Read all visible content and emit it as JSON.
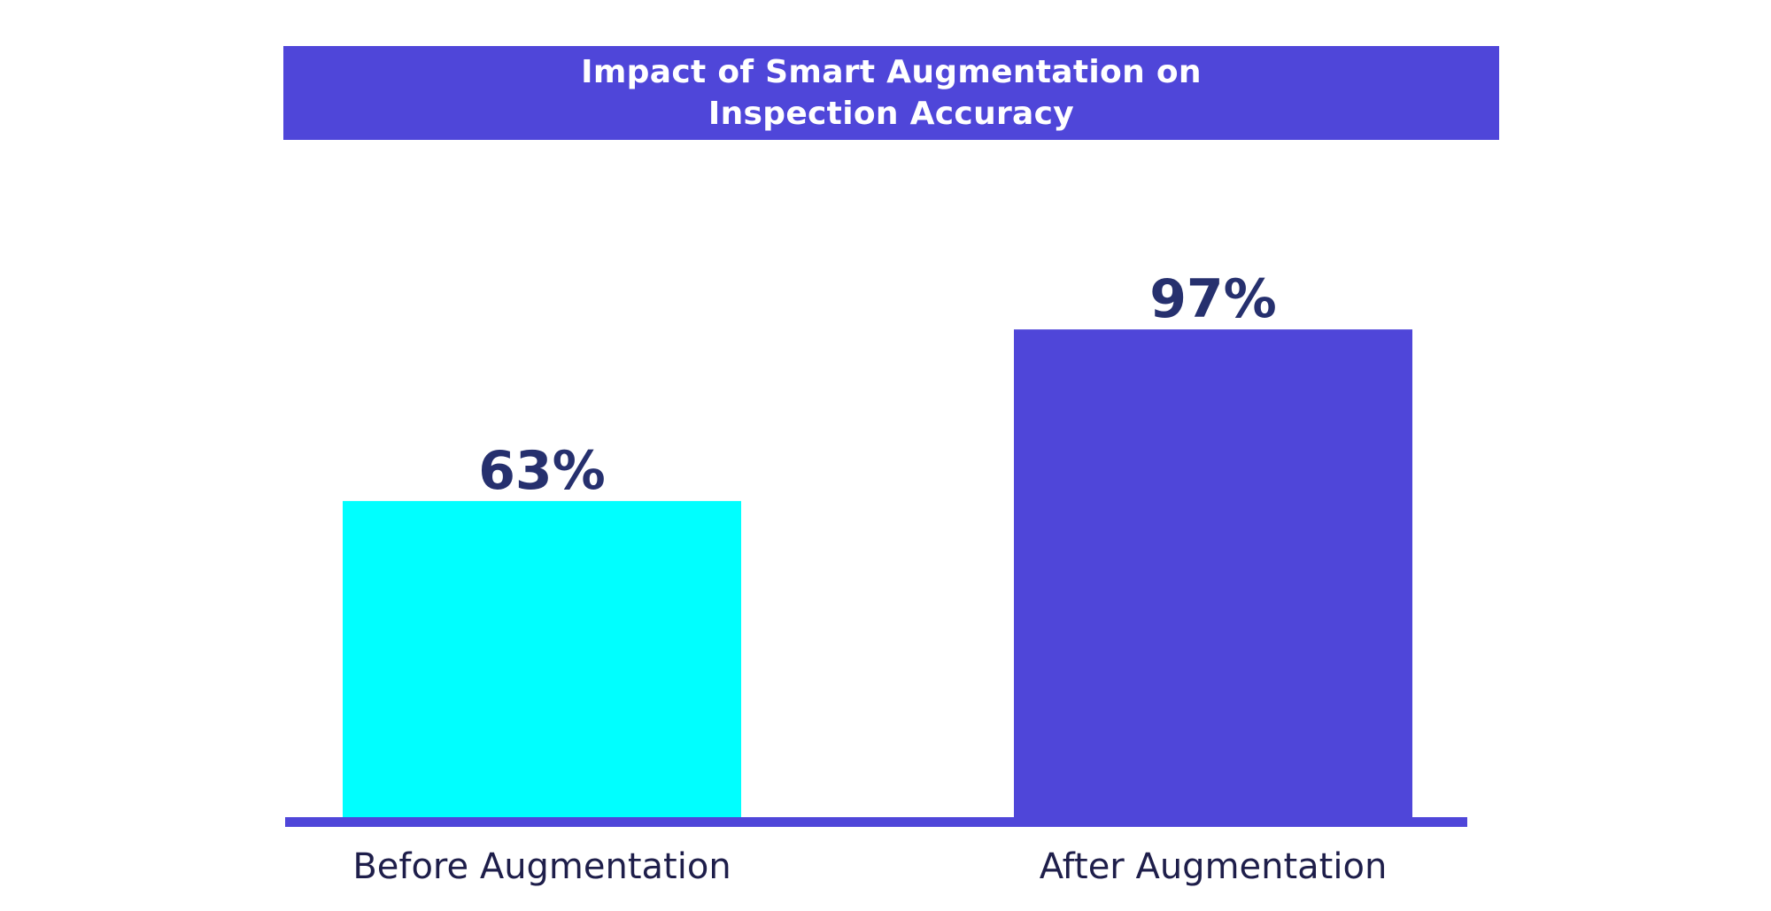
{
  "chart_data": {
    "type": "bar",
    "title": "Impact of Smart Augmentation on\nInspection Accuracy",
    "categories": [
      "Before Augmentation",
      "After Augmentation"
    ],
    "values": [
      63,
      97
    ],
    "value_labels": [
      "63%",
      "97%"
    ],
    "bar_colors": [
      "#00ffff",
      "#4f46d9"
    ],
    "ylim": [
      0,
      100
    ],
    "grid": false,
    "value_label_color": "#26306e",
    "category_label_color": "#1e1e4a",
    "baseline_color": "#4f46d9",
    "title_background": "#4f46d9"
  }
}
